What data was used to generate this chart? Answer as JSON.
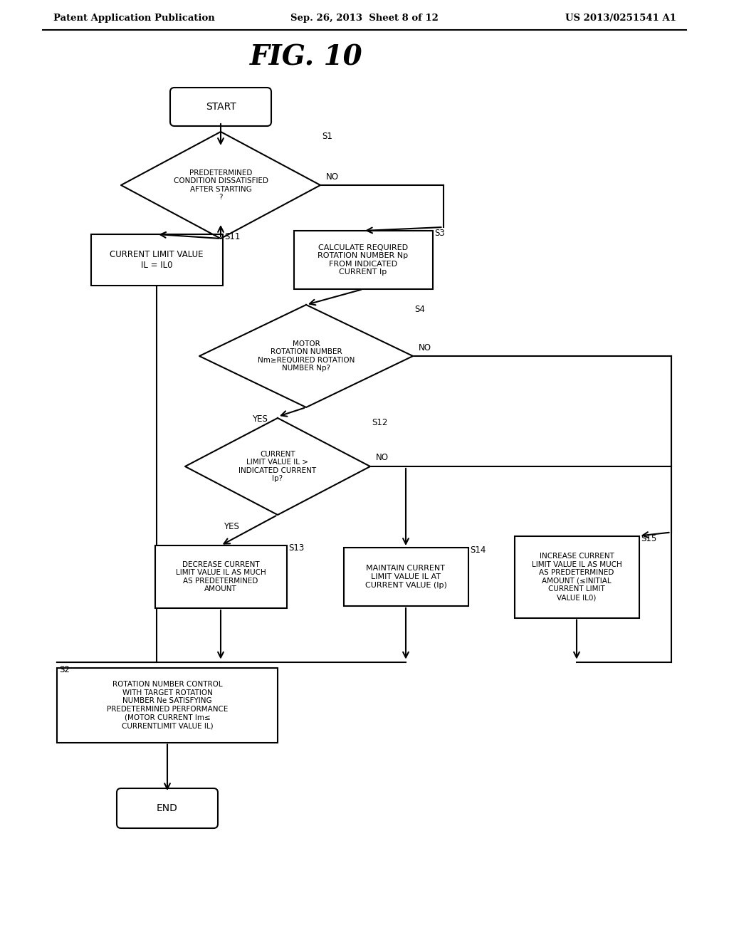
{
  "bg_color": "#ffffff",
  "header_left": "Patent Application Publication",
  "header_center": "Sep. 26, 2013  Sheet 8 of 12",
  "header_right": "US 2013/0251541 A1",
  "title": "FIG. 10",
  "start_label": "START",
  "end_label": "END",
  "s1_label": "PREDETERMINED\nCONDITION DISSATISFIED\nAFTER STARTING\n?",
  "s1_step": "S1",
  "s11_label": "CURRENT LIMIT VALUE\nIL = IL0",
  "s11_step": "S11",
  "s3_label": "CALCULATE REQUIRED\nROTATION NUMBER Np\nFROM INDICATED\nCURRENT Ip",
  "s3_step": "S3",
  "s4_label": "MOTOR\nROTATION NUMBER\nNm≥REQUIRED ROTATION\nNUMBER Np?",
  "s4_step": "S4",
  "s12_label": "CURRENT\nLIMIT VALUE IL >\nINDICATED CURRENT\nIp?",
  "s12_step": "S12",
  "s13_label": "DECREASE CURRENT\nLIMIT VALUE IL AS MUCH\nAS PREDETERMINED\nAMOUNT",
  "s13_step": "S13",
  "s14_label": "MAINTAIN CURRENT\nLIMIT VALUE IL AT\nCURRENT VALUE (Ip)",
  "s14_step": "S14",
  "s15_label": "INCREASE CURRENT\nLIMIT VALUE IL AS MUCH\nAS PREDETERMINED\nAMOUNT (≤INITIAL\nCURRENT LIMIT\nVALUE IL0)",
  "s15_step": "S15",
  "s2_label": "ROTATION NUMBER CONTROL\nWITH TARGET ROTATION\nNUMBER Ne SATISFYING\nPREDETERMINED PERFORMANCE\n(MOTOR CURRENT Im≤\nCURRENTLIMIT VALUE IL)",
  "s2_step": "S2",
  "yes_label": "YES",
  "no_label": "NO"
}
